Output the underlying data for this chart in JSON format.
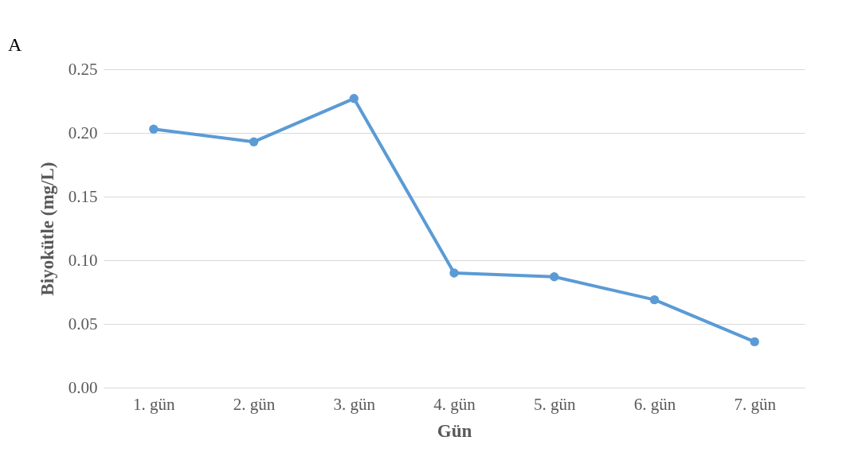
{
  "chart_data": {
    "type": "line",
    "xlabel": "Gün",
    "ylabel": "Biyokütle (mg/L)",
    "categories": [
      "1. gün",
      "2. gün",
      "3. gün",
      "4. gün",
      "5. gün",
      "6. gün",
      "7. gün"
    ],
    "series": [
      {
        "color": "#5b9bd5",
        "values": [
          0.203,
          0.193,
          0.227,
          0.09,
          0.087,
          0.069,
          0.036
        ]
      }
    ],
    "ylim": [
      0,
      0.25
    ],
    "yticks": [
      {
        "value": 0,
        "label": "0.00"
      },
      {
        "value": 0.05,
        "label": "0.05"
      },
      {
        "value": 0.1,
        "label": "0.10"
      },
      {
        "value": 0.15,
        "label": "0.15"
      },
      {
        "value": 0.2,
        "label": "0.20"
      },
      {
        "value": 0.25,
        "label": "0.25"
      }
    ],
    "grid": "y",
    "marker": "circle",
    "line_style": "solid",
    "annotations": [
      "A"
    ]
  }
}
